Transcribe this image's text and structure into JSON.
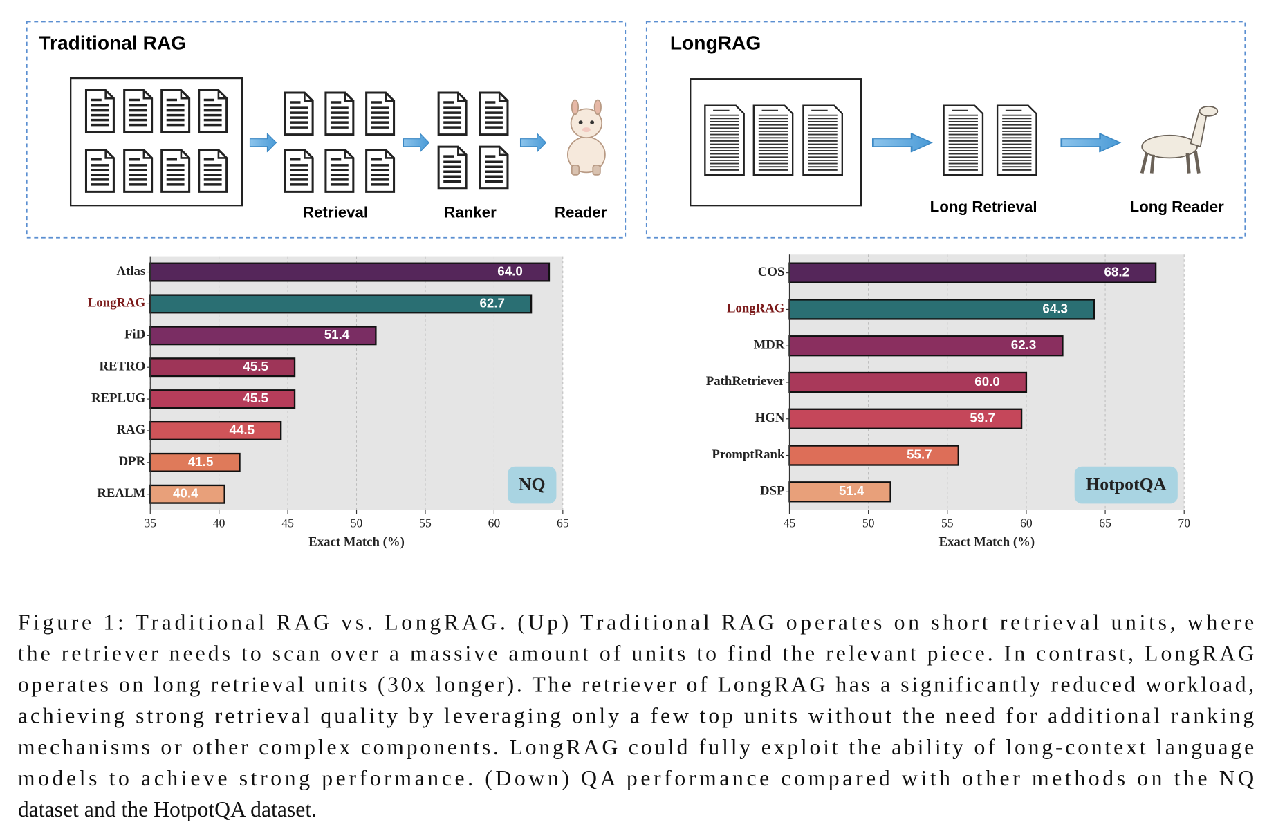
{
  "diagram": {
    "left": {
      "title": "Traditional RAG",
      "labels": [
        "Retrieval",
        "Ranker",
        "Reader"
      ]
    },
    "right": {
      "title": "LongRAG",
      "labels": [
        "Long Retrieval",
        "Long Reader"
      ]
    }
  },
  "chart_data": [
    {
      "type": "bar",
      "orientation": "horizontal",
      "categories": [
        "Atlas",
        "LongRAG",
        "FiD",
        "RETRO",
        "REPLUG",
        "RAG",
        "DPR",
        "REALM"
      ],
      "values": [
        64.0,
        62.7,
        51.4,
        45.5,
        45.5,
        44.5,
        41.5,
        40.4
      ],
      "value_labels": [
        "64.0",
        "62.7",
        "51.4",
        "45.5",
        "45.5",
        "44.5",
        "41.5",
        "40.4"
      ],
      "colors": [
        "#55265a",
        "#2a6f73",
        "#7a2d63",
        "#9e3558",
        "#b63d5a",
        "#cf5459",
        "#df7a5a",
        "#e8a07a"
      ],
      "label_colors": [
        "#222222",
        "#7b1a1a",
        "#222222",
        "#222222",
        "#222222",
        "#222222",
        "#222222",
        "#222222"
      ],
      "xlabel": "Exact Match (%)",
      "xlim": [
        35,
        65
      ],
      "xticks": [
        35,
        40,
        45,
        50,
        55,
        60,
        65
      ],
      "grid": true,
      "badge": "NQ",
      "legend_corner": "lower right"
    },
    {
      "type": "bar",
      "orientation": "horizontal",
      "categories": [
        "COS",
        "LongRAG",
        "MDR",
        "PathRetriever",
        "HGN",
        "PromptRank",
        "DSP"
      ],
      "values": [
        68.2,
        64.3,
        62.3,
        60.0,
        59.7,
        55.7,
        51.4
      ],
      "value_labels": [
        "68.2",
        "64.3",
        "62.3",
        "60.0",
        "59.7",
        "55.7",
        "51.4"
      ],
      "colors": [
        "#55265a",
        "#2a6f73",
        "#8a2f5f",
        "#a9395a",
        "#c5475a",
        "#dd6e58",
        "#e8a07a"
      ],
      "label_colors": [
        "#222222",
        "#7b1a1a",
        "#222222",
        "#222222",
        "#222222",
        "#222222",
        "#222222"
      ],
      "xlabel": "Exact Match (%)",
      "xlim": [
        45,
        70
      ],
      "xticks": [
        45,
        50,
        55,
        60,
        65,
        70
      ],
      "grid": true,
      "badge": "HotpotQA",
      "legend_corner": "lower right"
    }
  ],
  "caption": {
    "lines": [
      "Figure 1: Traditional RAG vs. LongRAG. (Up) Traditional RAG operates on short retrieval units, where",
      "the retriever needs to scan over a massive amount of units to find the relevant piece. In contrast, LongRAG",
      "operates on long retrieval units (30x longer). The retriever of LongRAG has a significantly reduced workload,",
      "achieving strong retrieval quality by leveraging only a few top units without the need for additional ranking",
      "mechanisms or other complex components. LongRAG could fully exploit the ability of long-context language",
      "models to achieve strong performance. (Down) QA performance compared with other methods on the NQ",
      "dataset and the HotpotQA dataset."
    ]
  }
}
